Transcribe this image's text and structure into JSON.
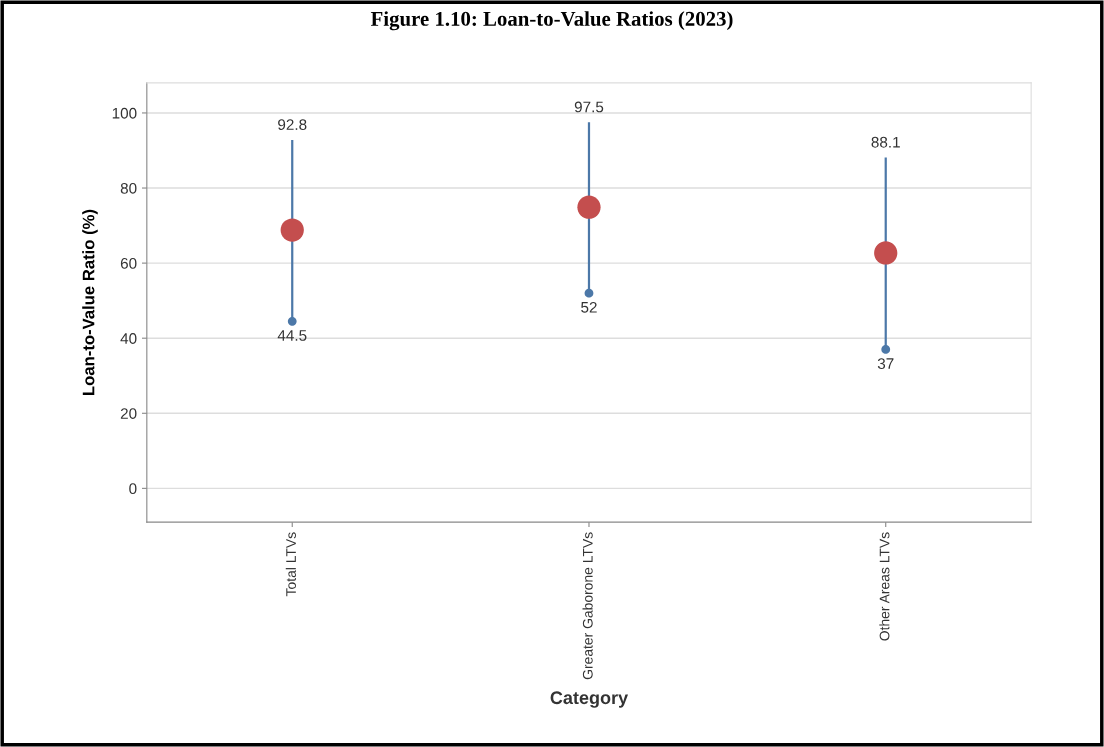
{
  "chart_data": {
    "type": "scatter",
    "title": "Figure 1.10: Loan-to-Value Ratios (2023)",
    "xlabel": "Category",
    "ylabel": "Loan-to-Value Ratio (%)",
    "categories": [
      "Total LTVs",
      "Greater Gaborone LTVs",
      "Other Areas LTVs"
    ],
    "series": [
      {
        "color": "#4c78a8",
        "values": [
          44.5,
          52,
          37
        ],
        "value_labels": [
          "44.5",
          "52",
          "37"
        ],
        "errors": [
          [
            44.5,
            92.8
          ],
          [
            52,
            97.5
          ],
          [
            37,
            88.1
          ]
        ]
      },
      {
        "color": "#c44e4e",
        "values": [
          68.8,
          74.9,
          62.7
        ]
      }
    ],
    "annotations": [
      {
        "text": "92.8",
        "x": "Total LTVs",
        "y": 92.8
      },
      {
        "text": "97.5",
        "x": "Greater Gaborone LTVs",
        "y": 97.5
      },
      {
        "text": "88.1",
        "x": "Other Areas LTVs",
        "y": 88.1
      }
    ],
    "ylim": [
      -9,
      108
    ],
    "yticks": [
      0,
      20,
      40,
      60,
      80,
      100
    ],
    "grid": "y",
    "marker": "circle"
  }
}
